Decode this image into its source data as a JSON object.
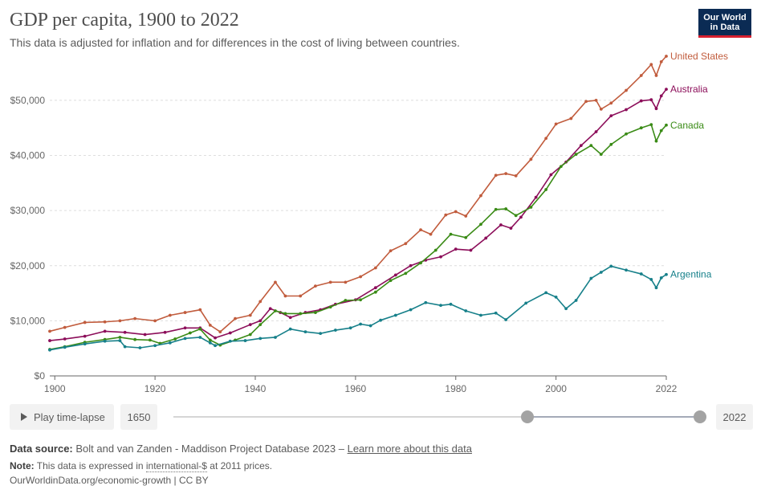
{
  "header": {
    "title": "GDP per capita, 1900 to 2022",
    "subtitle": "This data is adjusted for inflation and for differences in the cost of living between countries.",
    "logo_line1": "Our World",
    "logo_line2": "in Data"
  },
  "controls": {
    "play_label": "Play time-lapse",
    "start_year": "1650",
    "end_year": "2022",
    "range_start_fraction": 0.754,
    "range_end_fraction": 1.0
  },
  "footer": {
    "source_label": "Data source:",
    "source_text": "Bolt and van Zanden - Maddison Project Database 2023 – ",
    "source_link": "Learn more about this data",
    "note_label": "Note:",
    "note_text_before": "This data is expressed in ",
    "note_link": "international-$",
    "note_text_after": " at 2011 prices.",
    "url": "OurWorldinData.org/economic-growth | CC BY"
  },
  "colors": {
    "United States": "#c15c3d",
    "Australia": "#8c0e5a",
    "Canada": "#3a8b16",
    "Argentina": "#17808a",
    "grid": "#dedede",
    "axis": "#666666"
  },
  "chart_data": {
    "type": "line",
    "title": "GDP per capita, 1900 to 2022",
    "xlabel": "",
    "ylabel": "",
    "xlim": [
      1899,
      2022
    ],
    "ylim": [
      0,
      58000
    ],
    "x_ticks": [
      1900,
      1920,
      1940,
      1960,
      1980,
      2000,
      2022
    ],
    "y_ticks": [
      0,
      10000,
      20000,
      30000,
      40000,
      50000
    ],
    "y_tick_labels": [
      "$0",
      "$10,000",
      "$20,000",
      "$30,000",
      "$40,000",
      "$50,000"
    ],
    "grid": "horizontal",
    "legend": "line-end labels",
    "series": [
      {
        "name": "United States",
        "years": [
          1899,
          1902,
          1906,
          1910,
          1913,
          1916,
          1920,
          1923,
          1926,
          1929,
          1931,
          1933,
          1936,
          1939,
          1941,
          1944,
          1946,
          1949,
          1952,
          1955,
          1958,
          1961,
          1964,
          1967,
          1970,
          1973,
          1975,
          1978,
          1980,
          1982,
          1985,
          1988,
          1990,
          1992,
          1995,
          1998,
          2000,
          2003,
          2006,
          2008,
          2009,
          2011,
          2014,
          2017,
          2019,
          2020,
          2021,
          2022
        ],
        "values": [
          8100,
          8800,
          9700,
          9800,
          10000,
          10400,
          10000,
          11000,
          11500,
          12000,
          9200,
          8000,
          10400,
          11000,
          13500,
          17000,
          14500,
          14500,
          16300,
          17000,
          17000,
          18000,
          19600,
          22700,
          24000,
          26500,
          25700,
          29200,
          29800,
          29000,
          32700,
          36400,
          36700,
          36300,
          39300,
          43100,
          45700,
          46700,
          49800,
          50000,
          48400,
          49500,
          51800,
          54500,
          56500,
          54500,
          57000,
          58000
        ]
      },
      {
        "name": "Australia",
        "years": [
          1899,
          1902,
          1906,
          1910,
          1914,
          1918,
          1922,
          1926,
          1929,
          1932,
          1935,
          1939,
          1941,
          1943,
          1945,
          1947,
          1950,
          1953,
          1956,
          1960,
          1964,
          1968,
          1971,
          1974,
          1977,
          1980,
          1983,
          1986,
          1989,
          1991,
          1993,
          1996,
          1999,
          2002,
          2005,
          2008,
          2011,
          2014,
          2017,
          2019,
          2020,
          2021,
          2022
        ],
        "values": [
          6400,
          6700,
          7200,
          8100,
          7900,
          7500,
          7900,
          8700,
          8700,
          6900,
          7800,
          9300,
          10000,
          12200,
          11500,
          10600,
          11500,
          12000,
          13000,
          13800,
          16000,
          18300,
          20000,
          21000,
          21600,
          23000,
          22800,
          25000,
          27400,
          26800,
          28800,
          32400,
          36500,
          38800,
          41800,
          44300,
          47200,
          48300,
          49900,
          50100,
          48500,
          50800,
          52000
        ]
      },
      {
        "name": "Canada",
        "years": [
          1899,
          1902,
          1906,
          1910,
          1913,
          1916,
          1919,
          1921,
          1924,
          1927,
          1929,
          1931,
          1933,
          1936,
          1939,
          1941,
          1944,
          1946,
          1949,
          1952,
          1955,
          1958,
          1961,
          1964,
          1967,
          1970,
          1973,
          1976,
          1979,
          1982,
          1985,
          1988,
          1990,
          1992,
          1995,
          1998,
          2001,
          2004,
          2007,
          2009,
          2011,
          2014,
          2017,
          2019,
          2020,
          2021,
          2022
        ],
        "values": [
          4800,
          5300,
          6100,
          6600,
          7000,
          6600,
          6500,
          5900,
          6700,
          7800,
          8500,
          6500,
          5600,
          6500,
          7500,
          9300,
          11800,
          11300,
          11300,
          11500,
          12500,
          13700,
          13800,
          15200,
          17300,
          18600,
          20500,
          22800,
          25700,
          25100,
          27500,
          30200,
          30300,
          29100,
          30600,
          33800,
          38000,
          40200,
          41800,
          40200,
          42000,
          43900,
          45000,
          45600,
          42600,
          44500,
          45500
        ]
      },
      {
        "name": "Argentina",
        "years": [
          1899,
          1902,
          1906,
          1910,
          1913,
          1914,
          1917,
          1920,
          1923,
          1926,
          1929,
          1931,
          1932,
          1935,
          1938,
          1941,
          1944,
          1947,
          1950,
          1953,
          1956,
          1959,
          1961,
          1963,
          1965,
          1968,
          1971,
          1974,
          1977,
          1979,
          1982,
          1985,
          1988,
          1990,
          1994,
          1998,
          2000,
          2002,
          2004,
          2007,
          2009,
          2011,
          2014,
          2017,
          2019,
          2020,
          2021,
          2022
        ],
        "values": [
          4700,
          5200,
          5800,
          6300,
          6400,
          5300,
          5100,
          5500,
          6000,
          6800,
          7000,
          6000,
          5500,
          6300,
          6400,
          6800,
          7000,
          8500,
          8000,
          7700,
          8300,
          8700,
          9400,
          9100,
          10100,
          11000,
          12000,
          13300,
          12800,
          13000,
          11800,
          11000,
          11400,
          10200,
          13200,
          15100,
          14300,
          12200,
          13700,
          17700,
          18800,
          19900,
          19200,
          18500,
          17500,
          16000,
          17800,
          18400
        ]
      }
    ]
  }
}
